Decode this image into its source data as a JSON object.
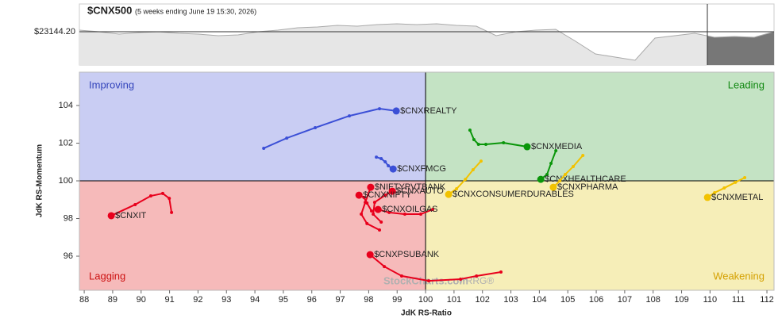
{
  "chart_data": {
    "type": "rrg",
    "title": "$CNX500",
    "subtitle": "(5 weeks ending June 19 15:30, 2026)",
    "price": {
      "reference": {
        "value": 23144.2,
        "label": "$23144.20"
      },
      "ylim": [
        21780,
        24280
      ],
      "values": [
        23209,
        23144,
        23046,
        23111,
        23144,
        23079,
        23046,
        22981,
        23014,
        23144,
        23209,
        23306,
        23338,
        23403,
        23371,
        23436,
        23468,
        23436,
        23468,
        23403,
        23371,
        22981,
        23144,
        23209,
        23241,
        22754,
        22234,
        22104,
        21975,
        22884,
        22981,
        23079,
        22916,
        22949,
        22916,
        23144.2
      ]
    },
    "xlabel": "JdK RS-Ratio",
    "ylabel": "JdK RS-Momentum",
    "xlim": [
      87.83,
      112.25
    ],
    "ylim": [
      94.19,
      105.77
    ],
    "xticks": [
      88,
      89,
      90,
      91,
      92,
      93,
      94,
      95,
      96,
      97,
      98,
      99,
      100,
      101,
      102,
      103,
      104,
      105,
      106,
      107,
      108,
      109,
      110,
      111,
      112
    ],
    "yticks": [
      96,
      98,
      100,
      102,
      104
    ],
    "center": [
      100,
      100
    ],
    "quadrants": [
      {
        "name": "Improving",
        "color": "#c9cdf3",
        "text_color": "#3344bb"
      },
      {
        "name": "Leading",
        "color": "#c4e3c4",
        "text_color": "#118811"
      },
      {
        "name": "Lagging",
        "color": "#f6baba",
        "text_color": "#cc1111"
      },
      {
        "name": "Weakening",
        "color": "#f6eeb8",
        "text_color": "#d4a000"
      }
    ],
    "watermark": [
      "StockCharts.com",
      "/ RRG®"
    ],
    "series": [
      {
        "name": "$CNXREALTY",
        "color": "#3b4fd6",
        "x": [
          94.31,
          95.12,
          96.12,
          97.32,
          98.38,
          98.97
        ],
        "y": [
          101.73,
          102.27,
          102.82,
          103.45,
          103.83,
          103.71
        ]
      },
      {
        "name": "$CNXFMCG",
        "color": "#3b4fd6",
        "x": [
          98.27,
          98.44,
          98.58,
          98.69,
          98.86
        ],
        "y": [
          101.26,
          101.18,
          101.01,
          100.8,
          100.63
        ]
      },
      {
        "name": "$CNXMEDIA",
        "color": "#0a960a",
        "x": [
          101.56,
          101.7,
          101.86,
          102.12,
          102.74,
          103.57
        ],
        "y": [
          102.69,
          102.19,
          101.94,
          101.94,
          102.02,
          101.81
        ]
      },
      {
        "name": "$CNXHEALTHCARE",
        "color": "#0a960a",
        "x": [
          104.58,
          104.41,
          104.27,
          104.05
        ],
        "y": [
          101.6,
          100.93,
          100.34,
          100.08
        ]
      },
      {
        "name": "$CNXCONSUMERDURABLES",
        "color": "#f2c200",
        "x": [
          101.95,
          101.67,
          101.4,
          101.09,
          100.81
        ],
        "y": [
          101.05,
          100.59,
          100.08,
          99.58,
          99.28
        ]
      },
      {
        "name": "$CNXPHARMA",
        "color": "#f2c200",
        "x": [
          105.53,
          105.19,
          104.91,
          104.72,
          104.49
        ],
        "y": [
          101.35,
          100.76,
          100.34,
          100.0,
          99.66
        ]
      },
      {
        "name": "$CNXMETAL",
        "color": "#f2c200",
        "x": [
          111.22,
          110.89,
          110.5,
          110.16,
          109.91
        ],
        "y": [
          100.17,
          99.92,
          99.62,
          99.37,
          99.12
        ]
      },
      {
        "name": "$CNXIT",
        "color": "#e8001c",
        "x": [
          91.07,
          90.99,
          90.76,
          90.34,
          89.79,
          88.95
        ],
        "y": [
          98.32,
          99.07,
          99.33,
          99.2,
          98.74,
          98.15
        ]
      },
      {
        "name": "$CNXPSUBANK",
        "color": "#e8001c",
        "x": [
          102.65,
          101.79,
          101.23,
          100.11,
          99.16,
          98.55,
          98.05
        ],
        "y": [
          95.16,
          94.95,
          94.78,
          94.69,
          94.95,
          95.45,
          96.08
        ]
      },
      {
        "name": "$NIFTYPVTBANK",
        "color": "#e8001c",
        "x": [
          98.38,
          97.94,
          97.74,
          97.88,
          98.07
        ],
        "y": [
          97.39,
          97.73,
          98.23,
          98.86,
          99.66
        ]
      },
      {
        "name": "$CNXAUTO",
        "color": "#e8001c",
        "x": [
          98.44,
          98.16,
          98.21,
          98.58,
          98.83
        ],
        "y": [
          97.81,
          98.23,
          98.86,
          99.24,
          99.45
        ]
      },
      {
        "name": "$CNXNIFTY",
        "color": "#e8001c",
        "x": [
          98.1,
          97.94,
          97.83,
          97.66
        ],
        "y": [
          98.4,
          98.82,
          99.12,
          99.24
        ]
      },
      {
        "name": "$CNXOILGAS",
        "color": "#e8001c",
        "x": [
          100.25,
          99.83,
          99.27,
          98.72,
          98.33
        ],
        "y": [
          98.48,
          98.23,
          98.23,
          98.32,
          98.48
        ]
      }
    ]
  }
}
